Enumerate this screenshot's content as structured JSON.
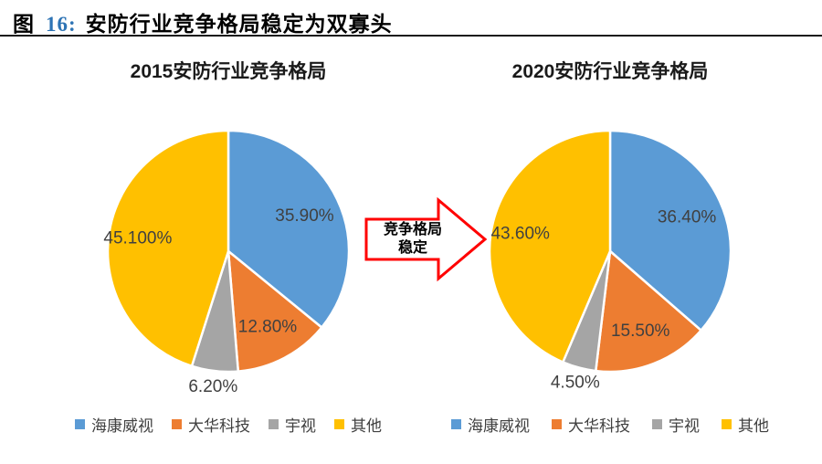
{
  "header": {
    "figure_label": "图",
    "figure_number": "16:",
    "title": "安防行业竞争格局稳定为双寡头",
    "number_color": "#2E74B5"
  },
  "arrow": {
    "line1": "竞争格局",
    "line2": "稳定",
    "border_color": "#FF0000"
  },
  "styles": {
    "label_color": "#404040",
    "slice_border_color": "#FFFFFF"
  },
  "legend": {
    "items": [
      {
        "label": "海康威视",
        "color": "#5B9BD5"
      },
      {
        "label": "大华科技",
        "color": "#ED7D31"
      },
      {
        "label": "宇视",
        "color": "#A5A5A5"
      },
      {
        "label": "其他",
        "color": "#FFC000"
      }
    ]
  },
  "chart_data": [
    {
      "type": "pie",
      "title": "2015安防行业竞争格局",
      "start_angle_deg": -90,
      "direction": "clockwise",
      "legend_position": "bottom",
      "slices": [
        {
          "name": "海康威视",
          "value": 35.9,
          "label": "35.90%",
          "color": "#5B9BD5",
          "label_placement": "inside"
        },
        {
          "name": "大华科技",
          "value": 12.8,
          "label": "12.80%",
          "color": "#ED7D31",
          "label_placement": "inside"
        },
        {
          "name": "宇视",
          "value": 6.2,
          "label": "6.20%",
          "color": "#A5A5A5",
          "label_placement": "outside"
        },
        {
          "name": "其他",
          "value": 45.1,
          "label": "45.100%",
          "color": "#FFC000",
          "label_placement": "inside"
        }
      ]
    },
    {
      "type": "pie",
      "title": "2020安防行业竞争格局",
      "start_angle_deg": -90,
      "direction": "clockwise",
      "legend_position": "bottom",
      "slices": [
        {
          "name": "海康威视",
          "value": 36.4,
          "label": "36.40%",
          "color": "#5B9BD5",
          "label_placement": "inside"
        },
        {
          "name": "大华科技",
          "value": 15.5,
          "label": "15.50%",
          "color": "#ED7D31",
          "label_placement": "inside"
        },
        {
          "name": "宇视",
          "value": 4.5,
          "label": "4.50%",
          "color": "#A5A5A5",
          "label_placement": "outside"
        },
        {
          "name": "其他",
          "value": 43.6,
          "label": "43.60%",
          "color": "#FFC000",
          "label_placement": "inside"
        }
      ]
    }
  ]
}
